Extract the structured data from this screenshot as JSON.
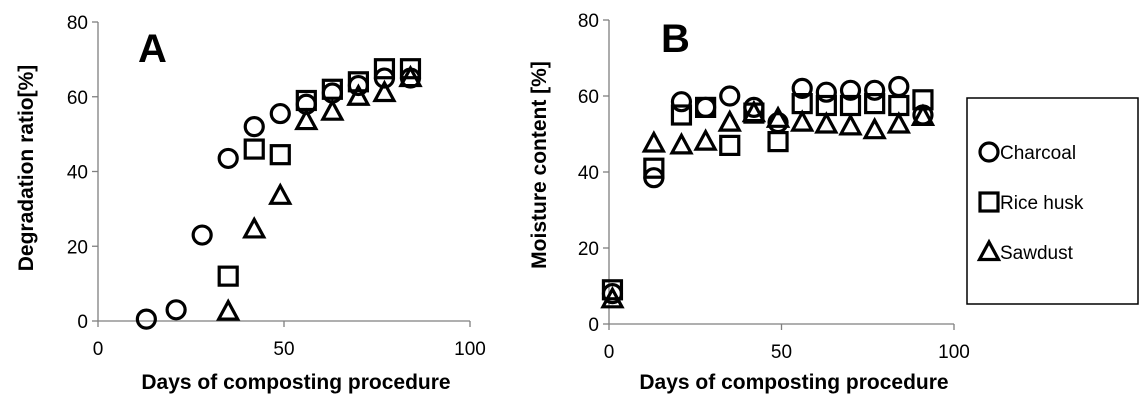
{
  "chart_data": [
    {
      "type": "scatter",
      "panel_label": "A",
      "xlabel": "Days of composting procedure",
      "ylabel": "Degradation ratio[%]",
      "xlim": [
        0,
        100
      ],
      "ylim": [
        0,
        80
      ],
      "xticks": [
        0,
        50,
        100
      ],
      "yticks": [
        0,
        20,
        40,
        60,
        80
      ],
      "grid": false,
      "series": [
        {
          "name": "Charcoal",
          "marker": "circle",
          "x": [
            13,
            21,
            28,
            35,
            42,
            49,
            56,
            63,
            70,
            77,
            84
          ],
          "y": [
            0.5,
            3,
            23,
            43.5,
            52,
            55.5,
            58,
            61,
            63,
            65,
            65
          ]
        },
        {
          "name": "Rice husk",
          "marker": "square",
          "x": [
            35,
            42,
            49,
            56,
            63,
            70,
            77,
            84
          ],
          "y": [
            12,
            46,
            44.5,
            59,
            62,
            64,
            67.5,
            67.5
          ]
        },
        {
          "name": "Sawdust",
          "marker": "triangle",
          "x": [
            35,
            42,
            49,
            56,
            63,
            70,
            77,
            84
          ],
          "y": [
            2.5,
            24.5,
            33.5,
            53.5,
            56,
            60,
            61,
            65
          ]
        }
      ]
    },
    {
      "type": "scatter",
      "panel_label": "B",
      "xlabel": "Days of composting procedure",
      "ylabel": "Moisture content [%]",
      "xlim": [
        0,
        100
      ],
      "ylim": [
        0,
        80
      ],
      "xticks": [
        0,
        50,
        100
      ],
      "yticks": [
        0,
        20,
        40,
        60,
        80
      ],
      "grid": false,
      "series": [
        {
          "name": "Charcoal",
          "marker": "circle",
          "x": [
            1,
            13,
            21,
            28,
            35,
            42,
            49,
            56,
            63,
            70,
            77,
            84,
            91
          ],
          "y": [
            8,
            38.5,
            58.5,
            57,
            60,
            57,
            53,
            62,
            61,
            61.5,
            61.5,
            62.5,
            55
          ]
        },
        {
          "name": "Rice husk",
          "marker": "square",
          "x": [
            1,
            13,
            21,
            28,
            35,
            42,
            49,
            56,
            63,
            70,
            77,
            84,
            91
          ],
          "y": [
            9,
            41,
            55,
            57,
            47,
            55.5,
            48,
            58,
            57.5,
            57.5,
            58,
            57.5,
            59
          ]
        },
        {
          "name": "Sawdust",
          "marker": "triangle",
          "x": [
            1,
            13,
            21,
            28,
            35,
            42,
            49,
            56,
            63,
            70,
            77,
            84,
            91
          ],
          "y": [
            6.5,
            47.5,
            47,
            48,
            53,
            55.5,
            54,
            53,
            52.5,
            52,
            51,
            52.5,
            54.5
          ]
        }
      ]
    }
  ],
  "legend": {
    "placement": "right",
    "items": [
      {
        "label": "Charcoal",
        "marker": "circle"
      },
      {
        "label": "Rice husk",
        "marker": "square"
      },
      {
        "label": "Sawdust",
        "marker": "triangle"
      }
    ]
  }
}
